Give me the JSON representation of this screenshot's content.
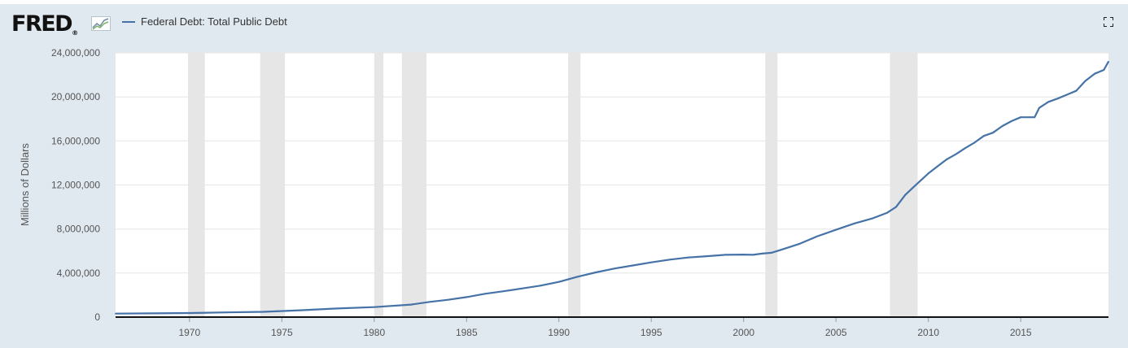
{
  "header": {
    "logo_text": "FRED",
    "logo_mark": "®",
    "legend_label": "Federal Debt: Total Public Debt",
    "icons": [
      "fred-chart-logo-icon",
      "fullscreen-icon"
    ]
  },
  "colors": {
    "series": "#4572a7",
    "recession": "#e6e6e6",
    "background": "#e1e9f0",
    "plot": "#ffffff"
  },
  "chart_data": {
    "type": "line",
    "title": "",
    "xlabel": "",
    "ylabel": "Millions of Dollars",
    "xlim": [
      1966.0,
      2019.75
    ],
    "ylim": [
      0,
      24000000
    ],
    "yticks": [
      0,
      4000000,
      8000000,
      12000000,
      16000000,
      20000000,
      24000000
    ],
    "ytick_labels": [
      "0",
      "4,000,000",
      "8,000,000",
      "12,000,000",
      "16,000,000",
      "20,000,000",
      "24,000,000"
    ],
    "xticks": [
      1970,
      1975,
      1980,
      1985,
      1990,
      1995,
      2000,
      2005,
      2010,
      2015
    ],
    "xtick_labels": [
      "1970",
      "1975",
      "1980",
      "1985",
      "1990",
      "1995",
      "2000",
      "2005",
      "2010",
      "2015"
    ],
    "grid": true,
    "legend": "top-left",
    "recession_shading": [
      [
        1969.92,
        1970.83
      ],
      [
        1973.83,
        1975.17
      ],
      [
        1980.0,
        1980.5
      ],
      [
        1981.5,
        1982.83
      ],
      [
        1990.5,
        1991.17
      ],
      [
        2001.17,
        2001.83
      ],
      [
        2007.92,
        2009.42
      ]
    ],
    "series": [
      {
        "name": "Federal Debt: Total Public Debt",
        "x": [
          1966.0,
          1968.0,
          1970.0,
          1972.0,
          1974.0,
          1976.0,
          1978.0,
          1980.0,
          1982.0,
          1983.0,
          1984.0,
          1985.0,
          1986.0,
          1987.0,
          1988.0,
          1989.0,
          1990.0,
          1991.0,
          1992.0,
          1993.0,
          1994.0,
          1995.0,
          1996.0,
          1997.0,
          1998.0,
          1999.0,
          2000.0,
          2000.5,
          2001.0,
          2001.5,
          2002.0,
          2003.0,
          2004.0,
          2005.0,
          2006.0,
          2007.0,
          2007.75,
          2008.25,
          2008.75,
          2009.25,
          2010.0,
          2010.5,
          2011.0,
          2011.5,
          2012.0,
          2012.5,
          2013.0,
          2013.5,
          2014.0,
          2014.5,
          2015.0,
          2015.75,
          2016.0,
          2016.5,
          2017.0,
          2017.5,
          2018.0,
          2018.5,
          2019.0,
          2019.5,
          2019.75
        ],
        "values": [
          320000,
          340000,
          370000,
          430000,
          480000,
          620000,
          780000,
          910000,
          1140000,
          1380000,
          1570000,
          1820000,
          2120000,
          2350000,
          2600000,
          2860000,
          3200000,
          3660000,
          4060000,
          4410000,
          4690000,
          4970000,
          5220000,
          5410000,
          5530000,
          5660000,
          5680000,
          5660000,
          5770000,
          5840000,
          6100000,
          6640000,
          7350000,
          7930000,
          8510000,
          8980000,
          9460000,
          10000000,
          11100000,
          11900000,
          13050000,
          13700000,
          14330000,
          14800000,
          15350000,
          15850000,
          16450000,
          16750000,
          17350000,
          17800000,
          18150000,
          18150000,
          19000000,
          19550000,
          19850000,
          20200000,
          20550000,
          21450000,
          22100000,
          22450000,
          23200000
        ]
      }
    ]
  }
}
